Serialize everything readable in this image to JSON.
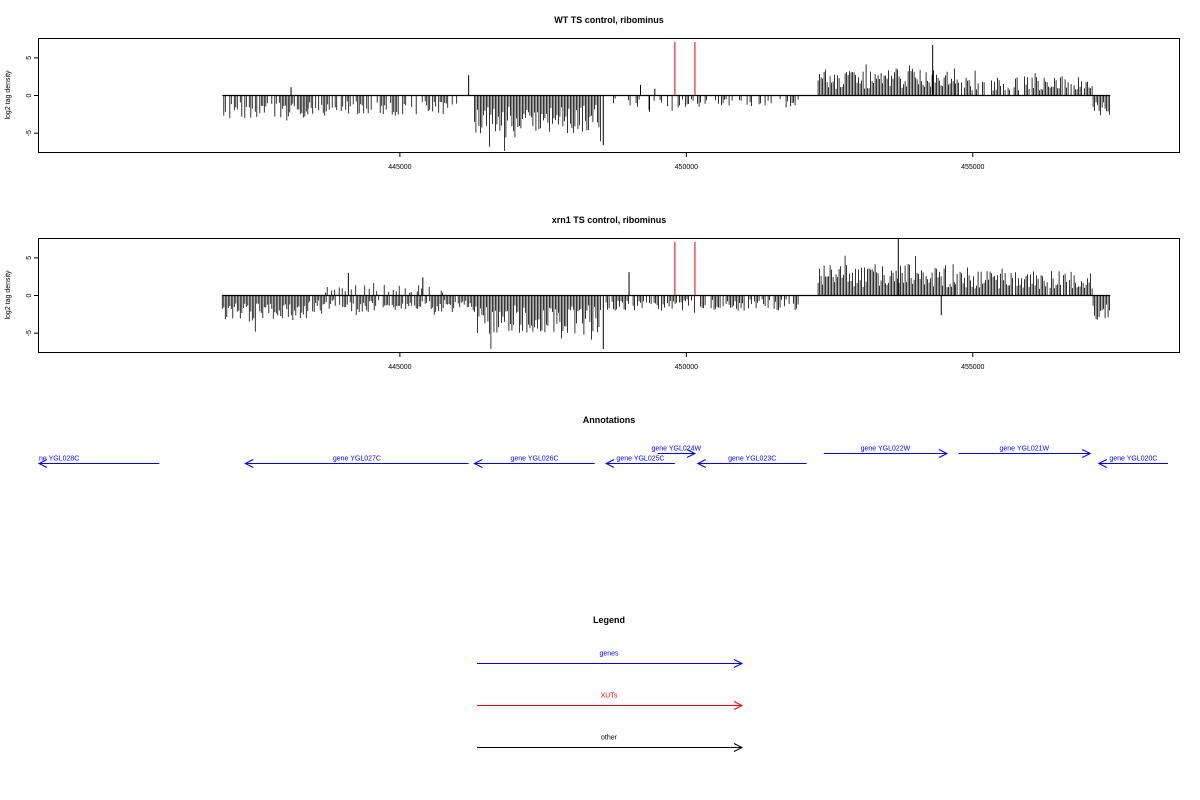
{
  "chart_data": [
    {
      "type": "bar",
      "title": "WT TS control, ribominus",
      "xlabel": "",
      "ylabel": "log2 tag density",
      "xlim": [
        438700,
        458600
      ],
      "ylim": [
        -7.5,
        7.5
      ],
      "xticks": [
        445000,
        450000,
        455000
      ],
      "xtick_labels": [
        "445000",
        "450000",
        "455000"
      ],
      "yticks": [
        5,
        0,
        -5
      ],
      "ytick_labels": [
        "5",
        "0",
        "-5"
      ],
      "grid": false,
      "zero_line": true,
      "markers": [
        449800,
        450150
      ],
      "marker_color": "#e00000",
      "bar_color": "#000000",
      "segments": [
        {
          "start": 441900,
          "end": 443400,
          "sign": -1,
          "amp": 3.0,
          "density": 0.75,
          "seed": 11
        },
        {
          "start": 443400,
          "end": 446000,
          "sign": -1,
          "amp": 2.7,
          "density": 0.55,
          "seed": 12
        },
        {
          "start": 446300,
          "end": 448500,
          "sign": -1,
          "amp": 5.0,
          "density": 1.0,
          "seed": 13
        },
        {
          "start": 448600,
          "end": 452000,
          "sign": -1,
          "amp": 1.6,
          "density": 0.45,
          "seed": 14
        },
        {
          "start": 452300,
          "end": 454700,
          "sign": 1,
          "amp": 3.6,
          "density": 1.0,
          "seed": 15
        },
        {
          "start": 454700,
          "end": 457100,
          "sign": 1,
          "amp": 2.6,
          "density": 0.75,
          "seed": 16
        },
        {
          "start": 457100,
          "end": 457400,
          "sign": -1,
          "amp": 2.8,
          "density": 1.0,
          "seed": 17
        }
      ],
      "spikes": [
        {
          "x": 443100,
          "y": 1.1
        },
        {
          "x": 446200,
          "y": 2.7
        },
        {
          "x": 448550,
          "y": -6.6
        },
        {
          "x": 449200,
          "y": 1.4
        },
        {
          "x": 449350,
          "y": -1.9
        },
        {
          "x": 449450,
          "y": 0.9
        },
        {
          "x": 454300,
          "y": 6.7
        }
      ]
    },
    {
      "type": "bar",
      "title": "xrn1 TS control, ribominus",
      "xlabel": "",
      "ylabel": "log2 tag density",
      "xlim": [
        438700,
        458600
      ],
      "ylim": [
        -7.5,
        7.5
      ],
      "xticks": [
        445000,
        450000,
        455000
      ],
      "xtick_labels": [
        "445000",
        "450000",
        "455000"
      ],
      "yticks": [
        5,
        0,
        -5
      ],
      "ytick_labels": [
        "5",
        "0",
        "-5"
      ],
      "grid": false,
      "zero_line": true,
      "markers": [
        449800,
        450150
      ],
      "marker_color": "#e00000",
      "bar_color": "#000000",
      "segments": [
        {
          "start": 441900,
          "end": 443400,
          "sign": -1,
          "amp": 3.5,
          "density": 1.0,
          "seed": 21
        },
        {
          "start": 443400,
          "end": 446300,
          "sign": -1,
          "amp": 2.2,
          "density": 0.8,
          "seed": 22
        },
        {
          "start": 443600,
          "end": 445800,
          "sign": 1,
          "amp": 1.4,
          "density": 0.25,
          "seed": 23
        },
        {
          "start": 446300,
          "end": 448500,
          "sign": -1,
          "amp": 5.2,
          "density": 1.0,
          "seed": 24
        },
        {
          "start": 448600,
          "end": 452000,
          "sign": -1,
          "amp": 2.0,
          "density": 0.7,
          "seed": 25
        },
        {
          "start": 452300,
          "end": 454700,
          "sign": 1,
          "amp": 4.2,
          "density": 1.0,
          "seed": 26
        },
        {
          "start": 454700,
          "end": 457100,
          "sign": 1,
          "amp": 3.3,
          "density": 0.95,
          "seed": 27
        },
        {
          "start": 457100,
          "end": 457400,
          "sign": -1,
          "amp": 3.5,
          "density": 1.0,
          "seed": 28
        }
      ],
      "spikes": [
        {
          "x": 444100,
          "y": 3.0
        },
        {
          "x": 445400,
          "y": 2.4
        },
        {
          "x": 448550,
          "y": -7.1
        },
        {
          "x": 449000,
          "y": 3.1
        },
        {
          "x": 453700,
          "y": 7.6
        },
        {
          "x": 454450,
          "y": -2.6
        }
      ]
    }
  ],
  "annotations": {
    "title": "Annotations",
    "genes": [
      {
        "label": "ne YGL028C",
        "start": 438700,
        "end": 440800,
        "strand": "-",
        "row": 1
      },
      {
        "label": "gene YGL027C",
        "start": 442300,
        "end": 446200,
        "strand": "-",
        "row": 1
      },
      {
        "label": "gene YGL026C",
        "start": 446300,
        "end": 448400,
        "strand": "-",
        "row": 1
      },
      {
        "label": "gene YGL025C",
        "start": 448600,
        "end": 449800,
        "strand": "-",
        "row": 1
      },
      {
        "label": "gene YGL024W",
        "start": 449500,
        "end": 450150,
        "strand": "+",
        "row": 0
      },
      {
        "label": "gene YGL023C",
        "start": 450200,
        "end": 452100,
        "strand": "-",
        "row": 1
      },
      {
        "label": "gene YGL022W",
        "start": 452400,
        "end": 454550,
        "strand": "+",
        "row": 0
      },
      {
        "label": "gene YGL021W",
        "start": 454750,
        "end": 457050,
        "strand": "+",
        "row": 0
      },
      {
        "label": "gene YGL020C",
        "start": 457200,
        "end": 458600,
        "strand": "-",
        "row": 1
      }
    ],
    "gene_color": "#0000ff"
  },
  "legend": {
    "title": "Legend",
    "items": [
      {
        "label": "genes",
        "color": "#0000ff"
      },
      {
        "label": "XUTs",
        "color": "#ff0000"
      },
      {
        "label": "other",
        "color": "#000000"
      }
    ]
  }
}
